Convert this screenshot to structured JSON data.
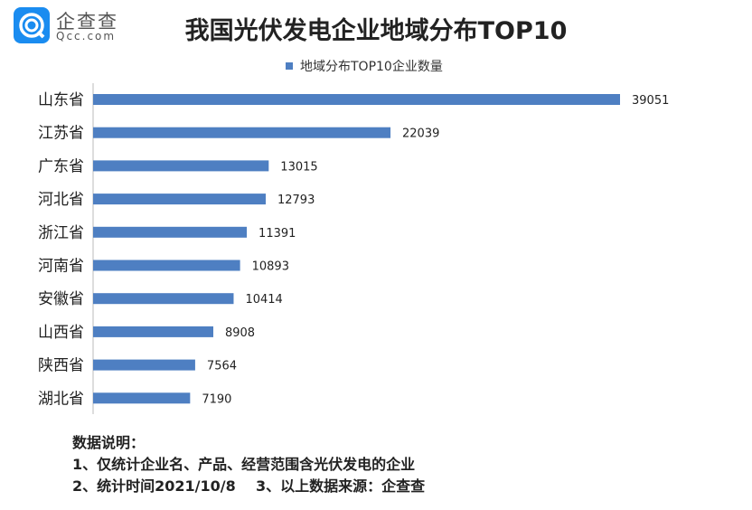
{
  "logo": {
    "name_cn": "企查查",
    "name_en": "Qcc.com"
  },
  "chart_data": {
    "type": "bar",
    "orientation": "horizontal",
    "title": "我国光伏发电企业地域分布TOP10",
    "categories": [
      "山东省",
      "江苏省",
      "广东省",
      "河北省",
      "浙江省",
      "河南省",
      "安徽省",
      "山西省",
      "陕西省",
      "湖北省"
    ],
    "series": [
      {
        "name": "地域分布TOP10企业数量",
        "values": [
          39051,
          22039,
          13015,
          12793,
          11391,
          10893,
          10414,
          8908,
          7564,
          7190
        ],
        "color": "#4e7fc2"
      }
    ],
    "data_labels": true,
    "grid": false,
    "legend": "top",
    "xlim": [
      0,
      39051
    ]
  },
  "notes": {
    "heading": "数据说明：",
    "line1": "1、仅统计企业名、产品、经营范围含光伏发电的企业",
    "line2": "2、统计时间2021/10/8    3、以上数据来源：企查查"
  }
}
